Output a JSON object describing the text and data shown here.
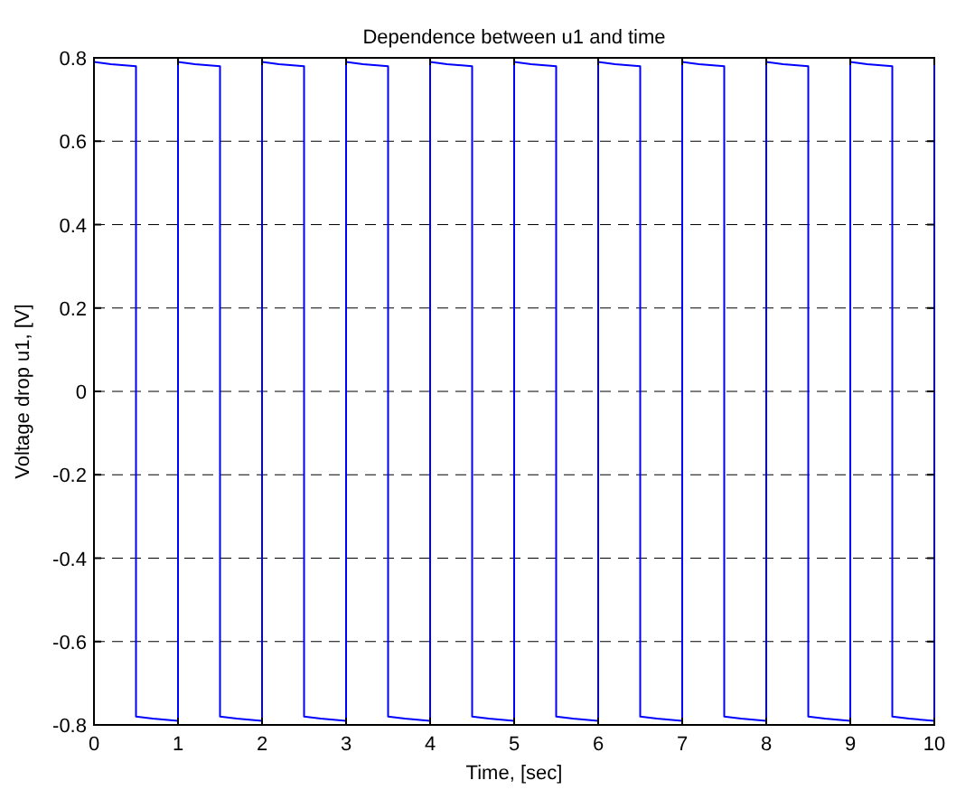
{
  "chart_data": {
    "type": "line",
    "title": "Dependence between u1 and time",
    "xlabel": "Time, [sec]",
    "ylabel": "Voltage drop u1, [V]",
    "xlim": [
      0,
      10
    ],
    "ylim": [
      -0.8,
      0.8
    ],
    "xticks": [
      0,
      1,
      2,
      3,
      4,
      5,
      6,
      7,
      8,
      9,
      10
    ],
    "yticks": [
      -0.8,
      -0.6,
      -0.4,
      -0.2,
      0,
      0.2,
      0.4,
      0.6,
      0.8
    ],
    "grid": true,
    "series": [
      {
        "color": "#0000ff",
        "x": [
          0,
          0.2,
          0.5,
          0.5,
          0.7,
          1,
          1,
          1.2,
          1.5,
          1.5,
          1.7,
          2,
          2,
          2.2,
          2.5,
          2.5,
          2.7,
          3,
          3,
          3.2,
          3.5,
          3.5,
          3.7,
          4,
          4,
          4.2,
          4.5,
          4.5,
          4.7,
          5,
          5,
          5.2,
          5.5,
          5.5,
          5.7,
          6,
          6,
          6.2,
          6.5,
          6.5,
          6.7,
          7,
          7,
          7.2,
          7.5,
          7.5,
          7.7,
          8,
          8,
          8.2,
          8.5,
          8.5,
          8.7,
          9,
          9,
          9.2,
          9.5,
          9.5,
          9.7,
          10,
          10
        ],
        "values": [
          0.79,
          0.785,
          0.78,
          -0.78,
          -0.785,
          -0.79,
          0.79,
          0.785,
          0.78,
          -0.78,
          -0.785,
          -0.79,
          0.79,
          0.785,
          0.78,
          -0.78,
          -0.785,
          -0.79,
          0.79,
          0.785,
          0.78,
          -0.78,
          -0.785,
          -0.79,
          0.79,
          0.785,
          0.78,
          -0.78,
          -0.785,
          -0.79,
          0.79,
          0.785,
          0.78,
          -0.78,
          -0.785,
          -0.79,
          0.79,
          0.785,
          0.78,
          -0.78,
          -0.785,
          -0.79,
          0.79,
          0.785,
          0.78,
          -0.78,
          -0.785,
          -0.79,
          0.79,
          0.785,
          0.78,
          -0.78,
          -0.785,
          -0.79,
          0.79,
          0.785,
          0.78,
          -0.78,
          -0.785,
          -0.79,
          0.79
        ]
      }
    ]
  }
}
